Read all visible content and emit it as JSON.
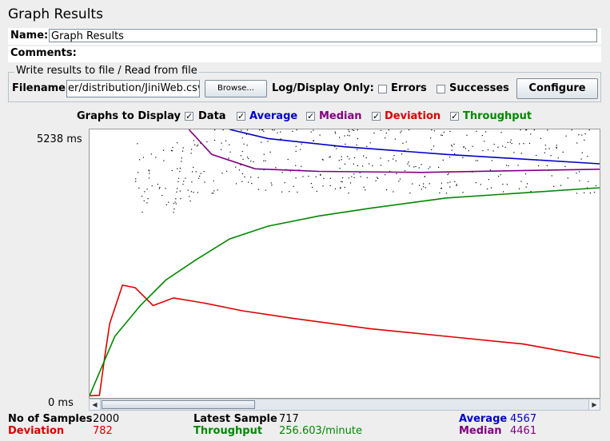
{
  "window": {
    "title": "Graph Results"
  },
  "name_label": "Name:",
  "name_value": "Graph Results",
  "comments_label": "Comments:",
  "file_section": {
    "legend": "Write results to file / Read from file",
    "filename_label": "Filename",
    "filename_value": "er/distribution/JiniWeb.csv",
    "browse_label": "Browse...",
    "log_display_label": "Log/Display Only:",
    "errors_label": "Errors",
    "successes_label": "Successes",
    "configure_label": "Configure"
  },
  "graphs_to_display": {
    "label": "Graphs to Display",
    "items": [
      {
        "label": "Data",
        "checked": true,
        "color": "#000000"
      },
      {
        "label": "Average",
        "checked": true,
        "color": "#0000cc"
      },
      {
        "label": "Median",
        "checked": true,
        "color": "#800080"
      },
      {
        "label": "Deviation",
        "checked": true,
        "color": "#dd0000"
      },
      {
        "label": "Throughput",
        "checked": true,
        "color": "#008800"
      }
    ]
  },
  "axis": {
    "top_label": "5238 ms",
    "bottom_label": "0 ms",
    "ymax": 5238,
    "ymin": 0
  },
  "chart_data": {
    "type": "line",
    "x_range": [
      1,
      2000
    ],
    "ylim": [
      0,
      5238
    ],
    "series": [
      {
        "name": "Average",
        "color": "#0000cc",
        "points": [
          [
            550,
            5238
          ],
          [
            700,
            5060
          ],
          [
            1000,
            4900
          ],
          [
            1400,
            4750
          ],
          [
            2000,
            4567
          ]
        ]
      },
      {
        "name": "Median",
        "color": "#800080",
        "points": [
          [
            390,
            5238
          ],
          [
            480,
            4750
          ],
          [
            650,
            4470
          ],
          [
            900,
            4420
          ],
          [
            1300,
            4400
          ],
          [
            2000,
            4461
          ]
        ]
      },
      {
        "name": "Deviation",
        "color": "#dd0000",
        "points": [
          [
            1,
            40
          ],
          [
            40,
            50
          ],
          [
            60,
            780
          ],
          [
            80,
            1450
          ],
          [
            130,
            2200
          ],
          [
            180,
            2150
          ],
          [
            250,
            1800
          ],
          [
            330,
            1950
          ],
          [
            450,
            1850
          ],
          [
            600,
            1700
          ],
          [
            800,
            1550
          ],
          [
            1100,
            1350
          ],
          [
            1400,
            1200
          ],
          [
            1700,
            1050
          ],
          [
            2000,
            782
          ]
        ]
      },
      {
        "name": "Throughput",
        "color": "#008800",
        "points": [
          [
            1,
            40
          ],
          [
            100,
            1200
          ],
          [
            200,
            1800
          ],
          [
            300,
            2300
          ],
          [
            420,
            2700
          ],
          [
            550,
            3100
          ],
          [
            700,
            3350
          ],
          [
            900,
            3550
          ],
          [
            1100,
            3700
          ],
          [
            1400,
            3900
          ],
          [
            1700,
            4000
          ],
          [
            2000,
            4100
          ]
        ]
      }
    ]
  },
  "stats": {
    "samples_label": "No of Samples",
    "samples_value": "2000",
    "latest_label": "Latest Sample",
    "latest_value": "717",
    "average_label": "Average",
    "average_value": "4567",
    "deviation_label": "Deviation",
    "deviation_value": "782",
    "throughput_label": "Throughput",
    "throughput_value": "256.603/minute",
    "median_label": "Median",
    "median_value": "4461"
  },
  "colors": {
    "black": "#000000",
    "blue": "#0000cc",
    "purple": "#800080",
    "red": "#dd0000",
    "green": "#008800"
  }
}
